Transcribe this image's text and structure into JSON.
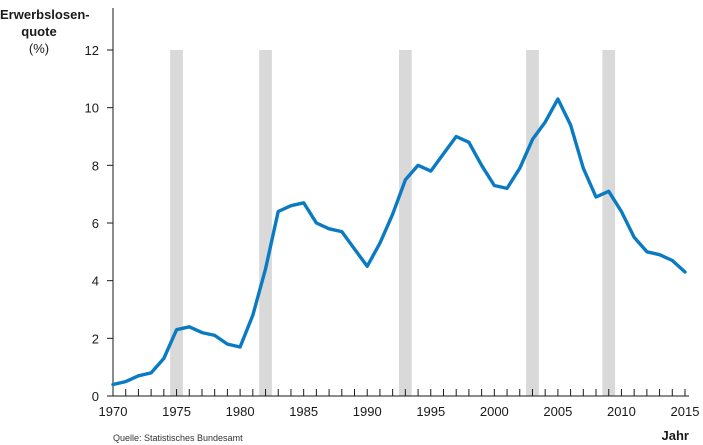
{
  "chart_data": {
    "type": "line",
    "title": "",
    "ylabel": [
      "Erwerbslosen-",
      "quote",
      "(%)"
    ],
    "xlabel": "Jahr",
    "source": "Quelle: Statistisches Bundesamt",
    "xlim": [
      1970,
      2015
    ],
    "ylim": [
      0,
      12
    ],
    "x_ticks": [
      1970,
      1975,
      1980,
      1985,
      1990,
      1995,
      2000,
      2005,
      2010,
      2015
    ],
    "y_ticks": [
      0,
      2,
      4,
      6,
      8,
      10,
      12
    ],
    "grid": false,
    "shaded_periods": [
      [
        1974.5,
        1975.5
      ],
      [
        1981.5,
        1982.5
      ],
      [
        1992.5,
        1993.5
      ],
      [
        2002.5,
        2003.5
      ],
      [
        2008.5,
        2009.5
      ]
    ],
    "line_color": "#0a7bc2",
    "shade_color": "#d9d9d9",
    "series": [
      {
        "x": [
          1970,
          1971,
          1972,
          1973,
          1974,
          1975,
          1976,
          1977,
          1978,
          1979,
          1980,
          1981,
          1982,
          1983,
          1984,
          1985,
          1986,
          1987,
          1988,
          1989,
          1990,
          1991,
          1992,
          1993,
          1994,
          1995,
          1996,
          1997,
          1998,
          1999,
          2000,
          2001,
          2002,
          2003,
          2004,
          2005,
          2006,
          2007,
          2008,
          2009,
          2010,
          2011,
          2012,
          2013,
          2014,
          2015
        ],
        "values": [
          0.4,
          0.5,
          0.7,
          0.8,
          1.3,
          2.3,
          2.4,
          2.2,
          2.1,
          1.8,
          1.7,
          2.8,
          4.4,
          6.4,
          6.6,
          6.7,
          6.0,
          5.8,
          5.7,
          5.1,
          4.5,
          5.3,
          6.3,
          7.5,
          8.0,
          7.8,
          8.4,
          9.0,
          8.8,
          8.0,
          7.3,
          7.2,
          7.9,
          8.9,
          9.5,
          10.3,
          9.4,
          7.9,
          6.9,
          7.1,
          6.4,
          5.5,
          5.0,
          4.9,
          4.7,
          4.3
        ]
      }
    ]
  }
}
